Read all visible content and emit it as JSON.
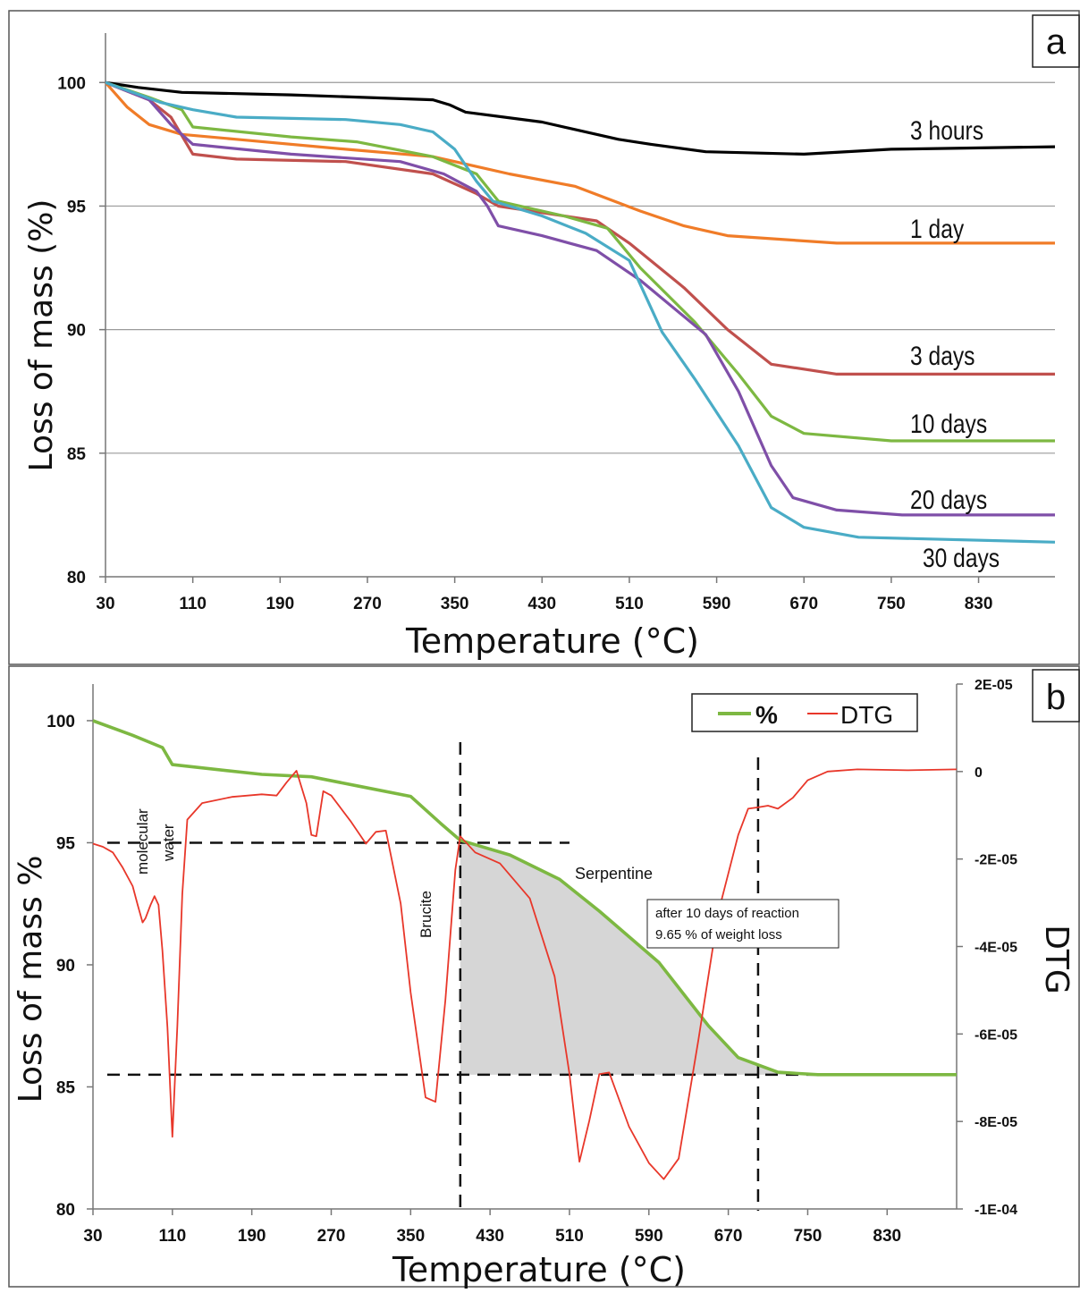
{
  "panel_a": {
    "panel_label": "a",
    "ylabel": "Loss of mass (%)",
    "xlabel": "Temperature (°C)"
  },
  "panel_b": {
    "panel_label": "b",
    "ylabel": "Loss of mass %",
    "y2label": "DTG",
    "xlabel": "Temperature (°C)",
    "legend": [
      "%",
      "DTG"
    ],
    "annotations": {
      "molecular": "molecular",
      "water": "water",
      "brucite": "Brucite",
      "serpentine": "Serpentine",
      "box_line1": "after 10 days of reaction",
      "box_line2": "9.65 % of weight loss"
    }
  },
  "chart_data": [
    {
      "type": "line",
      "panel": "a",
      "xlabel": "Temperature (°C)",
      "ylabel": "Loss of mass (%)",
      "xlim": [
        30,
        900
      ],
      "ylim": [
        80,
        102
      ],
      "x_ticks": [
        30,
        110,
        190,
        270,
        350,
        430,
        510,
        590,
        670,
        750,
        830
      ],
      "y_ticks": [
        80,
        85,
        90,
        95,
        100
      ],
      "grid": "horizontal",
      "series": [
        {
          "name": "3 hours",
          "color": "#000000",
          "points": [
            [
              30,
              100
            ],
            [
              60,
              99.8
            ],
            [
              100,
              99.6
            ],
            [
              200,
              99.5
            ],
            [
              330,
              99.3
            ],
            [
              345,
              99.1
            ],
            [
              360,
              98.8
            ],
            [
              430,
              98.4
            ],
            [
              500,
              97.7
            ],
            [
              530,
              97.5
            ],
            [
              580,
              97.2
            ],
            [
              670,
              97.1
            ],
            [
              750,
              97.3
            ],
            [
              900,
              97.4
            ]
          ]
        },
        {
          "name": "1 day",
          "color": "#f07c28",
          "points": [
            [
              30,
              100
            ],
            [
              50,
              99.0
            ],
            [
              70,
              98.3
            ],
            [
              100,
              97.9
            ],
            [
              150,
              97.7
            ],
            [
              250,
              97.3
            ],
            [
              330,
              97.0
            ],
            [
              400,
              96.3
            ],
            [
              460,
              95.8
            ],
            [
              520,
              94.8
            ],
            [
              560,
              94.2
            ],
            [
              600,
              93.8
            ],
            [
              700,
              93.5
            ],
            [
              900,
              93.5
            ]
          ]
        },
        {
          "name": "3 days",
          "color": "#c0504d",
          "points": [
            [
              30,
              100
            ],
            [
              70,
              99.3
            ],
            [
              90,
              98.6
            ],
            [
              110,
              97.1
            ],
            [
              150,
              96.9
            ],
            [
              250,
              96.8
            ],
            [
              330,
              96.3
            ],
            [
              370,
              95.5
            ],
            [
              390,
              95.0
            ],
            [
              480,
              94.4
            ],
            [
              510,
              93.5
            ],
            [
              560,
              91.7
            ],
            [
              600,
              90.0
            ],
            [
              640,
              88.6
            ],
            [
              700,
              88.2
            ],
            [
              900,
              88.2
            ]
          ]
        },
        {
          "name": "10 days",
          "color": "#7db842",
          "points": [
            [
              30,
              100
            ],
            [
              70,
              99.4
            ],
            [
              100,
              98.9
            ],
            [
              110,
              98.2
            ],
            [
              200,
              97.8
            ],
            [
              260,
              97.6
            ],
            [
              330,
              97.0
            ],
            [
              370,
              96.3
            ],
            [
              390,
              95.2
            ],
            [
              450,
              94.6
            ],
            [
              490,
              94.1
            ],
            [
              520,
              92.5
            ],
            [
              570,
              90.3
            ],
            [
              610,
              88.2
            ],
            [
              640,
              86.5
            ],
            [
              670,
              85.8
            ],
            [
              750,
              85.5
            ],
            [
              900,
              85.5
            ]
          ]
        },
        {
          "name": "20 days",
          "color": "#7f4fa8",
          "points": [
            [
              30,
              100
            ],
            [
              70,
              99.3
            ],
            [
              90,
              98.3
            ],
            [
              110,
              97.5
            ],
            [
              200,
              97.1
            ],
            [
              300,
              96.8
            ],
            [
              340,
              96.3
            ],
            [
              370,
              95.6
            ],
            [
              380,
              95.0
            ],
            [
              390,
              94.2
            ],
            [
              430,
              93.8
            ],
            [
              480,
              93.2
            ],
            [
              520,
              92.0
            ],
            [
              580,
              89.8
            ],
            [
              610,
              87.5
            ],
            [
              640,
              84.5
            ],
            [
              660,
              83.2
            ],
            [
              700,
              82.7
            ],
            [
              760,
              82.5
            ],
            [
              900,
              82.5
            ]
          ]
        },
        {
          "name": "30 days",
          "color": "#4aacc6",
          "points": [
            [
              30,
              100
            ],
            [
              80,
              99.2
            ],
            [
              110,
              98.9
            ],
            [
              150,
              98.6
            ],
            [
              250,
              98.5
            ],
            [
              300,
              98.3
            ],
            [
              330,
              98.0
            ],
            [
              350,
              97.3
            ],
            [
              370,
              96.0
            ],
            [
              385,
              95.2
            ],
            [
              430,
              94.6
            ],
            [
              470,
              93.9
            ],
            [
              510,
              92.8
            ],
            [
              540,
              89.9
            ],
            [
              570,
              88.0
            ],
            [
              610,
              85.3
            ],
            [
              640,
              82.8
            ],
            [
              670,
              82.0
            ],
            [
              720,
              81.6
            ],
            [
              900,
              81.4
            ]
          ]
        }
      ]
    },
    {
      "type": "line",
      "panel": "b",
      "xlabel": "Temperature (°C)",
      "ylabel": "Loss of mass %",
      "y2label": "DTG",
      "xlim": [
        30,
        900
      ],
      "ylim": [
        80,
        101.5
      ],
      "y2lim": [
        -0.0001,
        2e-05
      ],
      "x_ticks": [
        30,
        110,
        190,
        270,
        350,
        430,
        510,
        590,
        670,
        750,
        830
      ],
      "y_ticks": [
        80,
        85,
        90,
        95,
        100
      ],
      "y2_ticks": [
        "2E-05",
        "0",
        "-2E-05",
        "-4E-05",
        "-6E-05",
        "-8E-05",
        "-1E-04"
      ],
      "legend_position": "top-right",
      "reference_lines": {
        "x": [
          400,
          700
        ],
        "y": [
          95,
          85.5
        ]
      },
      "shaded_region": {
        "x_from": 400,
        "x_to": 760,
        "y_base": 85.5
      },
      "series": [
        {
          "name": "%",
          "color": "#7db842",
          "axis": "left",
          "points": [
            [
              30,
              100
            ],
            [
              70,
              99.4
            ],
            [
              100,
              98.9
            ],
            [
              110,
              98.2
            ],
            [
              200,
              97.8
            ],
            [
              250,
              97.7
            ],
            [
              300,
              97.3
            ],
            [
              350,
              96.9
            ],
            [
              380,
              95.8
            ],
            [
              400,
              95.1
            ],
            [
              450,
              94.5
            ],
            [
              500,
              93.5
            ],
            [
              540,
              92.2
            ],
            [
              600,
              90.1
            ],
            [
              650,
              87.5
            ],
            [
              680,
              86.2
            ],
            [
              720,
              85.6
            ],
            [
              760,
              85.5
            ],
            [
              900,
              85.5
            ]
          ]
        },
        {
          "name": "DTG",
          "color": "#e8372a",
          "axis": "right",
          "points": [
            [
              30,
              -1.65e-05
            ],
            [
              40,
              -1.72e-05
            ],
            [
              50,
              -1.85e-05
            ],
            [
              60,
              -2.2e-05
            ],
            [
              70,
              -2.62e-05
            ],
            [
              75,
              -3.05e-05
            ],
            [
              80,
              -3.45e-05
            ],
            [
              83,
              -3.35e-05
            ],
            [
              88,
              -3.05e-05
            ],
            [
              92,
              -2.85e-05
            ],
            [
              96,
              -3.05e-05
            ],
            [
              100,
              -4.1e-05
            ],
            [
              105,
              -5.85e-05
            ],
            [
              110,
              -8.35e-05
            ],
            [
              115,
              -5.8e-05
            ],
            [
              120,
              -2.8e-05
            ],
            [
              125,
              -1.1e-05
            ],
            [
              140,
              -7.2e-06
            ],
            [
              170,
              -5.8e-06
            ],
            [
              200,
              -5.2e-06
            ],
            [
              215,
              -5.5e-06
            ],
            [
              225,
              -2.5e-06
            ],
            [
              235,
              2e-07
            ],
            [
              245,
              -7.2e-06
            ],
            [
              250,
              -1.45e-05
            ],
            [
              255,
              -1.48e-05
            ],
            [
              262,
              -4.5e-06
            ],
            [
              270,
              -5.5e-06
            ],
            [
              290,
              -1.15e-05
            ],
            [
              305,
              -1.65e-05
            ],
            [
              315,
              -1.38e-05
            ],
            [
              325,
              -1.35e-05
            ],
            [
              340,
              -3.02e-05
            ],
            [
              350,
              -5.05e-05
            ],
            [
              365,
              -7.45e-05
            ],
            [
              375,
              -7.55e-05
            ],
            [
              385,
              -5.22e-05
            ],
            [
              395,
              -2.25e-05
            ],
            [
              400,
              -1.48e-05
            ],
            [
              415,
              -1.85e-05
            ],
            [
              440,
              -2.1e-05
            ],
            [
              470,
              -2.9e-05
            ],
            [
              495,
              -4.68e-05
            ],
            [
              510,
              -6.92e-05
            ],
            [
              520,
              -8.92e-05
            ],
            [
              530,
              -7.98e-05
            ],
            [
              540,
              -6.92e-05
            ],
            [
              550,
              -6.88e-05
            ],
            [
              570,
              -8.12e-05
            ],
            [
              590,
              -8.95e-05
            ],
            [
              605,
              -9.32e-05
            ],
            [
              620,
              -8.85e-05
            ],
            [
              640,
              -6.12e-05
            ],
            [
              660,
              -3.22e-05
            ],
            [
              680,
              -1.45e-05
            ],
            [
              690,
              -8.5e-06
            ],
            [
              700,
              -8.2e-06
            ],
            [
              710,
              -7.8e-06
            ],
            [
              720,
              -8.5e-06
            ],
            [
              735,
              -6e-06
            ],
            [
              750,
              -2e-06
            ],
            [
              770,
              0
            ],
            [
              800,
              5e-07
            ],
            [
              850,
              3e-07
            ],
            [
              900,
              5e-07
            ]
          ]
        }
      ]
    }
  ]
}
